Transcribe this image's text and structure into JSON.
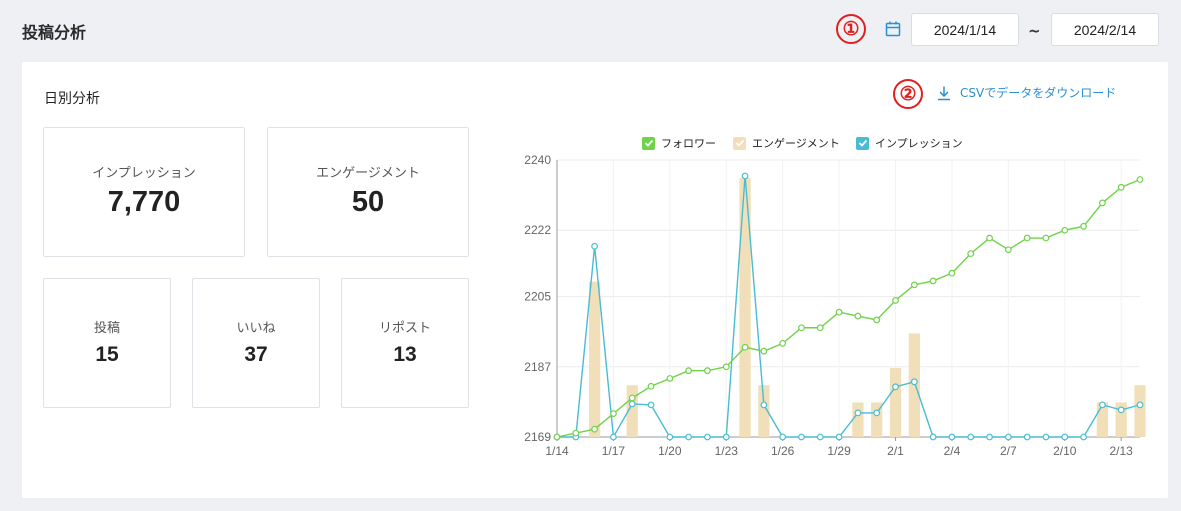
{
  "page": {
    "title": "投稿分析"
  },
  "markers": {
    "one": "①",
    "two": "②"
  },
  "date_range": {
    "from": "2024/1/14",
    "separator": "~",
    "to": "2024/2/14"
  },
  "section": {
    "title": "日別分析",
    "csv_label": "CSVでデータをダウンロード"
  },
  "stats": [
    {
      "label": "インプレッション",
      "value": "7,770"
    },
    {
      "label": "エンゲージメント",
      "value": "50"
    },
    {
      "label": "投稿",
      "value": "15"
    },
    {
      "label": "いいね",
      "value": "37"
    },
    {
      "label": "リポスト",
      "value": "13"
    }
  ],
  "colors": {
    "accent": "#2a8fd0",
    "follower": "#6fd34a",
    "engagement": "#f0dfb8",
    "impression": "#49bcd4",
    "marker": "#e02020"
  },
  "chart_data": {
    "type": "line",
    "legend": [
      "フォロワー",
      "エンゲージメント",
      "インプレッション"
    ],
    "legend_position": "top",
    "x": [
      "1/14",
      "1/15",
      "1/16",
      "1/17",
      "1/18",
      "1/19",
      "1/20",
      "1/21",
      "1/22",
      "1/23",
      "1/24",
      "1/25",
      "1/26",
      "1/27",
      "1/28",
      "1/29",
      "1/30",
      "1/31",
      "2/1",
      "2/2",
      "2/3",
      "2/4",
      "2/5",
      "2/6",
      "2/7",
      "2/8",
      "2/9",
      "2/10",
      "2/11",
      "2/12",
      "2/13",
      "2/14"
    ],
    "x_tick_labels": [
      "1/14",
      "1/17",
      "1/20",
      "1/23",
      "1/26",
      "1/29",
      "2/1",
      "2/4",
      "2/7",
      "2/10",
      "2/13"
    ],
    "y_ticks": [
      "2169",
      "2187",
      "2205",
      "2222",
      "2240"
    ],
    "ylim": [
      2169,
      2240
    ],
    "grid": true,
    "series": [
      {
        "name": "フォロワー",
        "kind": "line",
        "values": [
          2169,
          2170,
          2171,
          2175,
          2179,
          2182,
          2184,
          2186,
          2186,
          2187,
          2192,
          2191,
          2193,
          2197,
          2197,
          2201,
          2200,
          2199,
          2204,
          2208,
          2209,
          2211,
          2216,
          2220,
          2217,
          2220,
          2220,
          2222,
          2223,
          2229,
          2233,
          2235
        ]
      },
      {
        "name": "エンゲージメント",
        "kind": "bar",
        "values": [
          0,
          0,
          9,
          0,
          3,
          0,
          0,
          0,
          0,
          0,
          15,
          3,
          0,
          0,
          0,
          0,
          2,
          2,
          4,
          6,
          0,
          0,
          0,
          0,
          0,
          0,
          0,
          0,
          0,
          2,
          2,
          3
        ]
      },
      {
        "name": "インプレッション",
        "kind": "line",
        "values": [
          0,
          0,
          1900,
          0,
          330,
          320,
          0,
          0,
          0,
          0,
          2600,
          320,
          0,
          0,
          0,
          0,
          240,
          240,
          500,
          550,
          0,
          0,
          0,
          0,
          0,
          0,
          0,
          0,
          0,
          320,
          270,
          320
        ]
      }
    ]
  }
}
